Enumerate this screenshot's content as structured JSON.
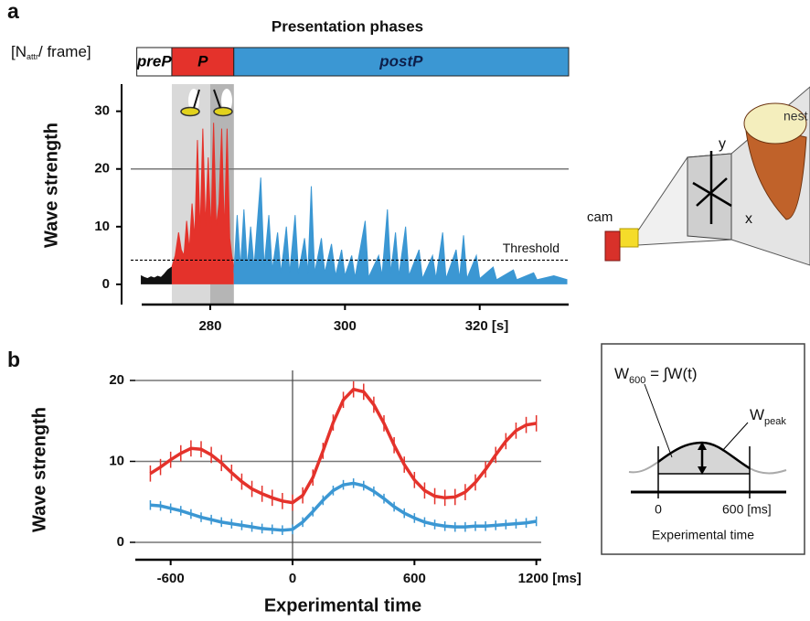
{
  "panels": [
    "a",
    "b"
  ],
  "chart_data": [
    {
      "type": "area",
      "title": "Presentation phases",
      "unit_label": {
        "pre": "[N",
        "sub": "attr",
        "post": "/ frame]"
      },
      "y_label": "Wave strength",
      "xlim": [
        268.2,
        333.2
      ],
      "ylim": [
        -3.5,
        34.7
      ],
      "xticks": [
        280,
        300,
        {
          "value": 320,
          "label": "320 [s]"
        }
      ],
      "yticks": [
        0,
        10,
        20,
        30
      ],
      "hlines": [
        20
      ],
      "threshold": {
        "value": 4.2,
        "label": "Threshold"
      },
      "phases": [
        {
          "name": "preP",
          "start": 269.1,
          "end": 274.3,
          "color": "#ffffff"
        },
        {
          "name": "P",
          "start": 274.3,
          "end": 283.5,
          "color": "#e4322b"
        },
        {
          "name": "postP",
          "start": 283.5,
          "end": 333.2,
          "color": "#3b97d3"
        }
      ],
      "shaded_spans": [
        {
          "start": 274.3,
          "end": 283.5,
          "color": "#d9d9d9"
        },
        {
          "start": 280,
          "end": 283.5,
          "color": "#b5b5b5"
        }
      ],
      "series": [
        {
          "color": "#111111",
          "x": [
            269.7,
            270.2,
            270.7,
            271.2,
            271.7,
            272.2,
            272.7,
            273.2,
            273.7,
            274.3
          ],
          "values": [
            1.5,
            1.2,
            1.0,
            1.3,
            1.1,
            1.4,
            1.2,
            1.8,
            2.5,
            3
          ]
        },
        {
          "color": "#e4322b",
          "x": [
            274.3,
            274.8,
            275.3,
            275.7,
            276.1,
            276.5,
            276.9,
            277.3,
            277.7,
            278.1,
            278.5,
            278.9,
            279.3,
            279.7,
            280.1,
            280.5,
            280.9,
            281.3,
            281.7,
            282.1,
            282.5,
            282.9,
            283.2,
            283.5
          ],
          "values": [
            3,
            5,
            9,
            6,
            5,
            11,
            6,
            14,
            8,
            25,
            9,
            27,
            10,
            22,
            9,
            28,
            10,
            14,
            27,
            9,
            27,
            8,
            5,
            3
          ]
        },
        {
          "color": "#3b97d3",
          "x": [
            283.5,
            284,
            284.5,
            285,
            285.5,
            286,
            286.5,
            287.5,
            288,
            288.7,
            289.2,
            290,
            290.5,
            291.3,
            291.8,
            292.6,
            293.1,
            294,
            294.5,
            295,
            295.5,
            296.5,
            297,
            298,
            298.6,
            299.5,
            300,
            301,
            301.5,
            303,
            303.5,
            305,
            305.5,
            306.3,
            306.8,
            307.5,
            308,
            309,
            309.5,
            311,
            311.5,
            313,
            313.5,
            314.5,
            315,
            316.5,
            317,
            317.6,
            318.1,
            319.5,
            320,
            322,
            322.5,
            325,
            325.5,
            328,
            328.5,
            331,
            333
          ],
          "values": [
            2,
            12,
            3,
            13,
            3,
            10,
            3,
            18.5,
            3,
            12,
            2.5,
            9,
            2,
            10,
            2,
            12,
            2,
            8,
            2,
            17,
            2,
            8,
            2,
            7,
            1.5,
            6,
            1.5,
            5,
            1.2,
            11,
            1.2,
            5,
            1.5,
            13,
            2,
            9,
            1.5,
            10,
            1.5,
            6,
            1,
            5,
            1,
            9,
            1,
            6,
            1,
            8.5,
            1,
            5,
            1,
            3,
            0.8,
            2.5,
            0.8,
            2,
            0.8,
            1.5,
            0.8
          ]
        }
      ]
    },
    {
      "type": "line",
      "x_label": "Experimental time",
      "y_label": "Wave strength",
      "xlim": [
        -774,
        1224
      ],
      "ylim": [
        -2.15,
        21.24
      ],
      "xticks": [
        -600,
        0,
        600,
        {
          "value": 1200,
          "label": "1200 [ms]"
        }
      ],
      "yticks": [
        0,
        10,
        20
      ],
      "grid": true,
      "vline": 0,
      "x": [
        -700,
        -650,
        -600,
        -550,
        -500,
        -450,
        -400,
        -350,
        -300,
        -250,
        -200,
        -150,
        -100,
        -50,
        0,
        50,
        100,
        150,
        200,
        250,
        300,
        350,
        400,
        450,
        500,
        550,
        600,
        650,
        700,
        750,
        800,
        850,
        900,
        950,
        1000,
        1050,
        1100,
        1150,
        1200
      ],
      "series": [
        {
          "color": "#e4322b",
          "error": 1.0,
          "values": [
            8.5,
            9.3,
            10.2,
            11,
            11.6,
            11.5,
            10.8,
            9.8,
            8.6,
            7.5,
            6.6,
            6,
            5.5,
            5.1,
            4.9,
            5.8,
            8,
            11.3,
            14.8,
            17.6,
            18.9,
            18.6,
            17,
            14.7,
            12,
            9.6,
            7.7,
            6.4,
            5.7,
            5.5,
            5.6,
            6.2,
            7.4,
            9,
            10.8,
            12.5,
            13.8,
            14.5,
            14.7
          ]
        },
        {
          "color": "#3b97d3",
          "error": 0.6,
          "values": [
            4.6,
            4.5,
            4.2,
            3.9,
            3.5,
            3.1,
            2.8,
            2.5,
            2.3,
            2.1,
            1.9,
            1.7,
            1.6,
            1.5,
            1.6,
            2.5,
            3.8,
            5.2,
            6.4,
            7.1,
            7.3,
            7,
            6.3,
            5.4,
            4.4,
            3.6,
            3,
            2.5,
            2.2,
            2,
            1.9,
            1.9,
            2,
            2,
            2.1,
            2.2,
            2.3,
            2.4,
            2.6
          ]
        }
      ]
    }
  ],
  "camera_diagram": {
    "nest": "nest",
    "y": "y",
    "x": "x",
    "cam": "cam"
  },
  "inset": {
    "formula": {
      "w": "W",
      "sub": "600",
      "rest": " = ∫W(t)"
    },
    "peak": {
      "w": "W",
      "sub": "peak"
    },
    "tick_0": "0",
    "tick_600": "600 [ms]",
    "x_label": "Experimental time"
  }
}
